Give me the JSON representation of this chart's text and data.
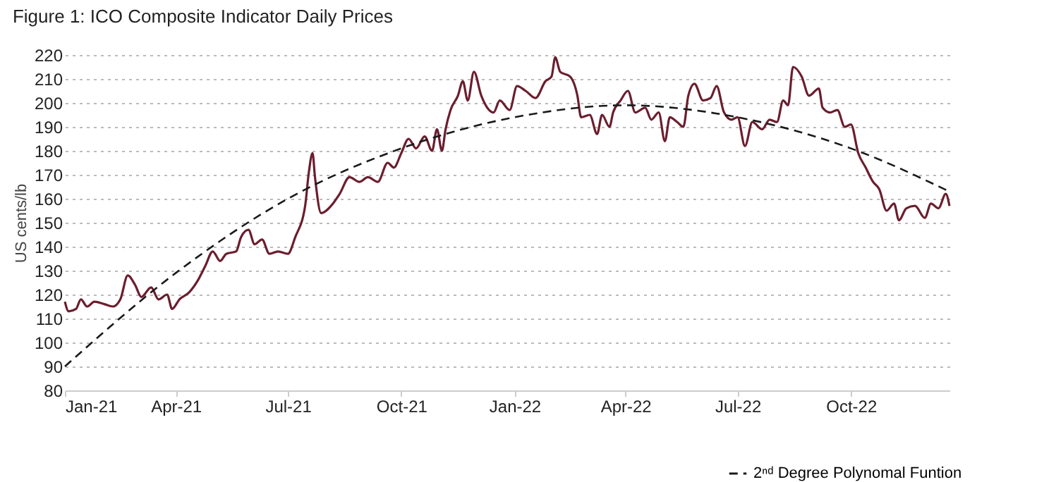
{
  "chart_data": {
    "type": "line",
    "title": "Figure 1: ICO Composite Indicator Daily Prices",
    "ylabel": "US cents/lb",
    "xlim": [
      "2021-01-01",
      "2022-12-20"
    ],
    "xticks": [
      {
        "value": "2021-01-01",
        "label": "Jan-21"
      },
      {
        "value": "2021-04-01",
        "label": "Apr-21"
      },
      {
        "value": "2021-07-01",
        "label": "Jul-21"
      },
      {
        "value": "2021-10-01",
        "label": "Oct-21"
      },
      {
        "value": "2022-01-01",
        "label": "Jan-22"
      },
      {
        "value": "2022-04-01",
        "label": "Apr-22"
      },
      {
        "value": "2022-07-01",
        "label": "Jul-22"
      },
      {
        "value": "2022-10-01",
        "label": "Oct-22"
      }
    ],
    "ylim": [
      80,
      220
    ],
    "yticks": [
      80,
      90,
      100,
      110,
      120,
      130,
      140,
      150,
      160,
      170,
      180,
      190,
      200,
      210,
      220
    ],
    "grid": "y",
    "legend": "bottom right",
    "series": [
      {
        "color": "#6b1e2e",
        "line_style": "solid",
        "x": [
          "2021-01-01",
          "2021-01-04",
          "2021-01-10",
          "2021-01-14",
          "2021-01-19",
          "2021-01-25",
          "2021-02-02",
          "2021-02-09",
          "2021-02-15",
          "2021-02-21",
          "2021-02-27",
          "2021-03-04",
          "2021-03-12",
          "2021-03-18",
          "2021-03-25",
          "2021-03-29",
          "2021-04-04",
          "2021-04-12",
          "2021-04-19",
          "2021-04-25",
          "2021-05-01",
          "2021-05-07",
          "2021-05-12",
          "2021-05-20",
          "2021-05-24",
          "2021-05-30",
          "2021-06-04",
          "2021-06-10",
          "2021-06-16",
          "2021-06-23",
          "2021-07-01",
          "2021-07-07",
          "2021-07-15",
          "2021-07-18",
          "2021-07-21",
          "2021-07-23",
          "2021-07-28",
          "2021-08-05",
          "2021-08-12",
          "2021-08-20",
          "2021-08-28",
          "2021-09-04",
          "2021-09-12",
          "2021-09-20",
          "2021-09-25",
          "2021-10-01",
          "2021-10-07",
          "2021-10-13",
          "2021-10-20",
          "2021-10-26",
          "2021-10-30",
          "2021-11-03",
          "2021-11-06",
          "2021-11-10",
          "2021-11-16",
          "2021-11-20",
          "2021-11-24",
          "2021-11-29",
          "2021-12-05",
          "2021-12-15",
          "2021-12-20",
          "2021-12-28",
          "2022-01-03",
          "2022-01-10",
          "2022-01-18",
          "2022-01-26",
          "2022-01-31",
          "2022-02-03",
          "2022-02-07",
          "2022-02-15",
          "2022-02-21",
          "2022-02-24",
          "2022-03-03",
          "2022-03-09",
          "2022-03-13",
          "2022-03-19",
          "2022-03-22",
          "2022-03-28",
          "2022-04-03",
          "2022-04-09",
          "2022-04-17",
          "2022-04-22",
          "2022-04-28",
          "2022-05-03",
          "2022-05-07",
          "2022-05-13",
          "2022-05-18",
          "2022-05-22",
          "2022-05-27",
          "2022-06-03",
          "2022-06-09",
          "2022-06-14",
          "2022-06-20",
          "2022-06-26",
          "2022-07-01",
          "2022-07-07",
          "2022-07-13",
          "2022-07-21",
          "2022-07-27",
          "2022-08-02",
          "2022-08-07",
          "2022-08-11",
          "2022-08-15",
          "2022-08-22",
          "2022-08-28",
          "2022-09-05",
          "2022-09-08",
          "2022-09-14",
          "2022-09-20",
          "2022-09-26",
          "2022-10-01",
          "2022-10-07",
          "2022-10-13",
          "2022-10-19",
          "2022-10-24",
          "2022-10-30",
          "2022-11-05",
          "2022-11-09",
          "2022-11-15",
          "2022-11-22",
          "2022-11-30",
          "2022-12-05",
          "2022-12-11",
          "2022-12-17",
          "2022-12-20"
        ],
        "values": [
          117,
          113,
          114,
          118,
          115,
          117,
          116,
          115,
          118,
          128,
          124,
          119,
          123,
          118,
          120,
          114,
          118,
          121,
          126,
          132,
          138,
          134,
          137,
          138,
          144,
          147,
          141,
          143,
          137,
          138,
          137,
          144,
          157,
          171,
          179,
          169,
          154,
          157,
          162,
          169,
          167,
          169,
          167,
          175,
          173,
          179,
          185,
          181,
          186,
          180,
          189,
          180,
          189,
          197,
          203,
          209,
          201,
          213,
          203,
          196,
          201,
          197,
          207,
          205,
          202,
          209,
          211,
          219,
          213,
          211,
          203,
          194,
          195,
          187,
          195,
          190,
          196,
          201,
          205,
          196,
          198,
          193,
          196,
          184,
          194,
          192,
          190,
          203,
          208,
          201,
          202,
          207,
          196,
          193,
          194,
          182,
          192,
          189,
          193,
          192,
          201,
          199,
          215,
          211,
          203,
          206,
          198,
          196,
          197,
          190,
          191,
          179,
          173,
          167,
          164,
          155,
          158,
          151,
          156,
          157,
          152,
          158,
          156,
          162,
          157
        ]
      },
      {
        "name": "2ⁿᵈ Degree Polynomal Funtion",
        "color": "#1a1a1a",
        "line_style": "dashed",
        "x": [
          "2021-01-01",
          "2021-04-01",
          "2021-07-01",
          "2021-10-01",
          "2022-01-01",
          "2022-04-01",
          "2022-07-01",
          "2022-10-01",
          "2022-12-20"
        ],
        "values": [
          90,
          129,
          160,
          181,
          194,
          199,
          194,
          181,
          163
        ]
      }
    ]
  }
}
